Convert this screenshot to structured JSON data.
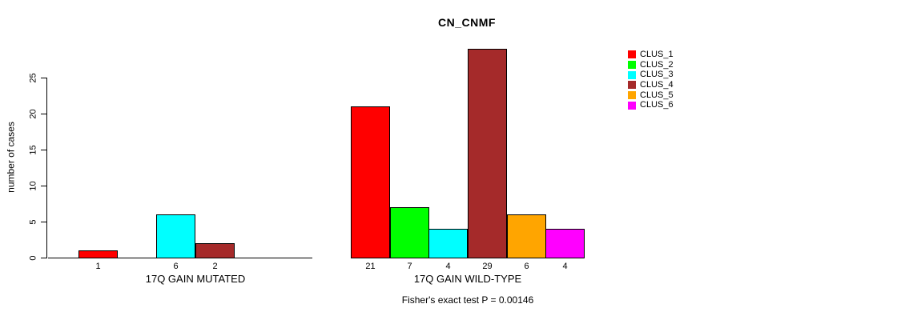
{
  "title": "CN_CNMF",
  "y_axis": {
    "label": "number of cases",
    "ticks": [
      0,
      5,
      10,
      15,
      20,
      25
    ]
  },
  "legend": {
    "items": [
      {
        "label": "CLUS_1",
        "color": "#ff0000"
      },
      {
        "label": "CLUS_2",
        "color": "#00ff00"
      },
      {
        "label": "CLUS_3",
        "color": "#00ffff"
      },
      {
        "label": "CLUS_4",
        "color": "#a52a2a"
      },
      {
        "label": "CLUS_5",
        "color": "#ffa500"
      },
      {
        "label": "CLUS_6",
        "color": "#ff00ff"
      }
    ]
  },
  "footer": "Fisher's exact test P = 0.00146",
  "chart_data": {
    "type": "bar",
    "title": "CN_CNMF",
    "ylabel": "number of cases",
    "ylim": [
      0,
      25
    ],
    "yticks": [
      0,
      5,
      10,
      15,
      20,
      25
    ],
    "series_labels": [
      "CLUS_1",
      "CLUS_2",
      "CLUS_3",
      "CLUS_4",
      "CLUS_5",
      "CLUS_6"
    ],
    "colors": [
      "#ff0000",
      "#00ff00",
      "#00ffff",
      "#a52a2a",
      "#ffa500",
      "#ff00ff"
    ],
    "categories": [
      "17Q GAIN MUTATED",
      "17Q GAIN WILD-TYPE"
    ],
    "groups": [
      {
        "label": "17Q GAIN MUTATED",
        "values": [
          1,
          0,
          6,
          2,
          0,
          0
        ],
        "shown_value_labels": [
          "1",
          "6",
          "2"
        ]
      },
      {
        "label": "17Q GAIN WILD-TYPE",
        "values": [
          21,
          7,
          4,
          29,
          6,
          4
        ],
        "shown_value_labels": [
          "21",
          "7",
          "4",
          "29",
          "6",
          "4"
        ]
      }
    ],
    "annotation": "Fisher's exact test P = 0.00146",
    "legend_position": "right",
    "grid": false
  }
}
